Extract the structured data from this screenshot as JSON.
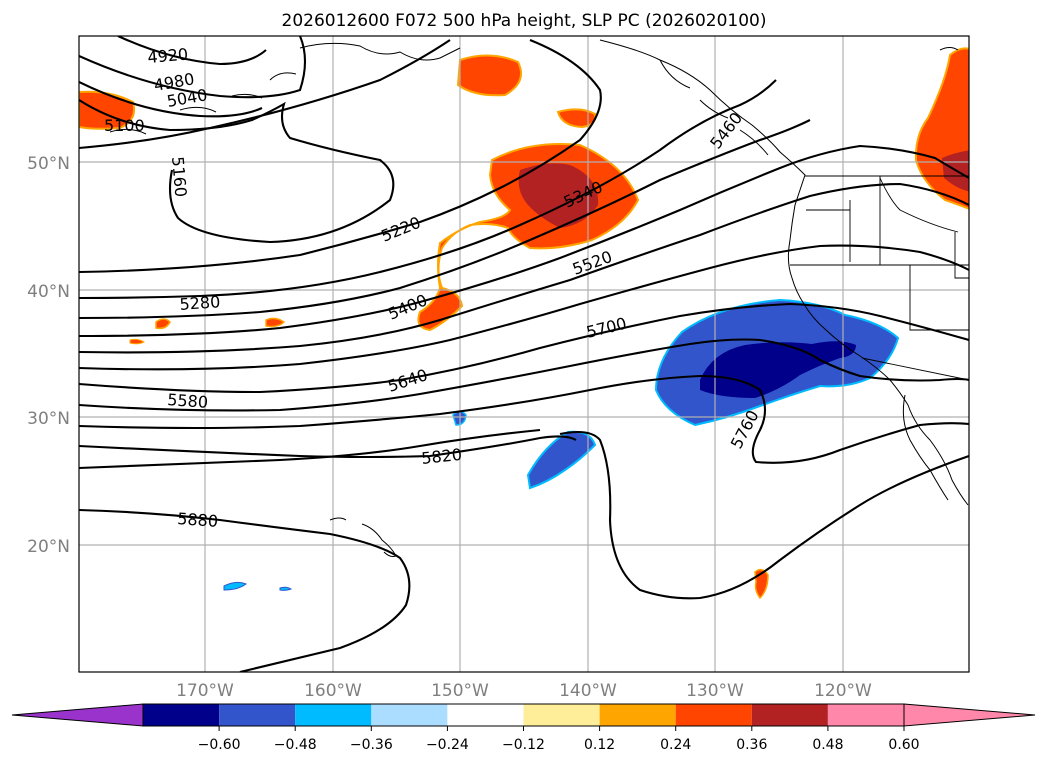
{
  "title": "2026012600 F072 500 hPa height, SLP PC (2026020100)",
  "lat_labels": [
    "50°N",
    "40°N",
    "30°N",
    "20°N"
  ],
  "lon_labels": [
    "170°W",
    "160°W",
    "150°W",
    "140°W",
    "130°W",
    "120°W"
  ],
  "contour_labels": [
    "4920",
    "4980",
    "5040",
    "5100",
    "5160",
    "5220",
    "5280",
    "5340",
    "5400",
    "5460",
    "5520",
    "5580",
    "5640",
    "5700",
    "5760",
    "5820",
    "5880"
  ],
  "colorbar": {
    "ticks": [
      "−0.60",
      "−0.48",
      "−0.36",
      "−0.24",
      "−0.12",
      "0.12",
      "0.24",
      "0.36",
      "0.48",
      "0.60"
    ],
    "colors": {
      "under": "#9933cc",
      "bins": [
        "#00008b",
        "#3355cc",
        "#00bbff",
        "#aaddff",
        "#ffffff",
        "#ffee99",
        "#ffa500",
        "#ff4500",
        "#b22222",
        "#ff88aa"
      ],
      "over": "#ff88aa"
    }
  },
  "anomaly_colors": {
    "positive_outer": "#ff4500",
    "positive_inner": "#b22222",
    "negative_outer": "#3355cc",
    "negative_inner": "#00008b",
    "negative_light": "#00bbff"
  }
}
